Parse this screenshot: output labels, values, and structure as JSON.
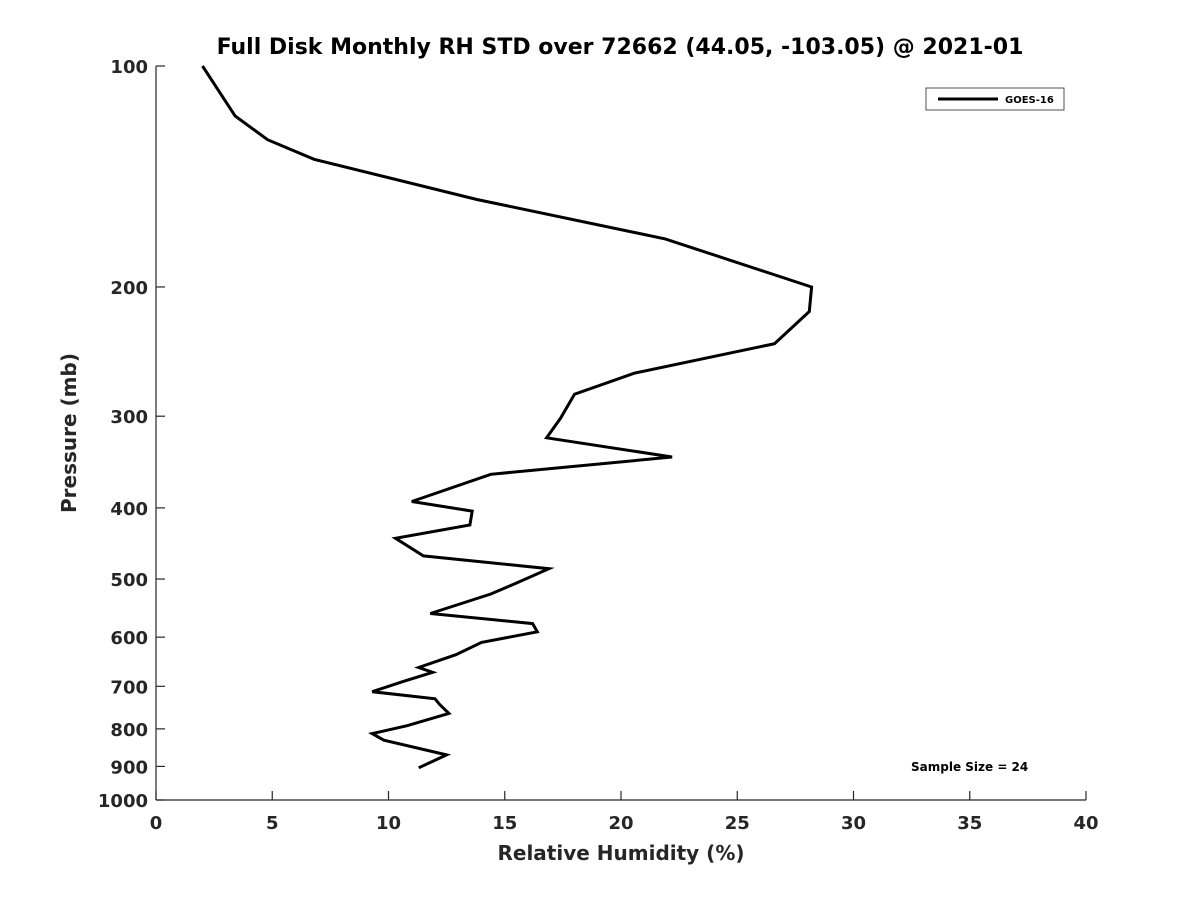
{
  "chart_data": {
    "type": "line",
    "title": "Full Disk Monthly RH STD over 72662 (44.05, -103.05) @ 2021-01",
    "xlabel": "Relative Humidity (%)",
    "ylabel": "Pressure (mb)",
    "xlim": [
      0,
      40
    ],
    "ylim": [
      100,
      1000
    ],
    "yscale": "log",
    "y_reversed": true,
    "grid": false,
    "legend_position": "top-right",
    "x_ticks": [
      0,
      5,
      10,
      15,
      20,
      25,
      30,
      35,
      40
    ],
    "x_tick_labels": [
      "0",
      "5",
      "10",
      "15",
      "20",
      "25",
      "30",
      "35",
      "40"
    ],
    "y_ticks": [
      100,
      200,
      300,
      400,
      500,
      600,
      700,
      800,
      900,
      1000
    ],
    "y_tick_labels": [
      "100",
      "200",
      "300",
      "400",
      "500",
      "600",
      "700",
      "800",
      "900",
      "1000"
    ],
    "series": [
      {
        "name": "GOES-16",
        "color": "#000000",
        "x": [
          2.0,
          3.4,
          4.8,
          6.8,
          13.8,
          21.9,
          28.2,
          28.1,
          26.6,
          20.6,
          18.0,
          17.4,
          16.8,
          22.2,
          14.4,
          11.0,
          13.6,
          13.5,
          10.3,
          11.5,
          16.9,
          15.4,
          14.4,
          11.8,
          16.2,
          16.4,
          14.0,
          12.9,
          11.3,
          11.9,
          10.6,
          9.3,
          12.0,
          12.2,
          12.6,
          10.8,
          9.3,
          9.8,
          12.5,
          11.3
        ],
        "y": [
          100,
          117,
          126,
          134,
          152,
          172,
          200,
          216,
          239,
          262,
          280,
          302,
          321,
          341,
          360,
          392,
          404,
          422,
          440,
          465,
          484,
          508,
          524,
          557,
          575,
          590,
          610,
          634,
          660,
          670,
          690,
          712,
          728,
          741,
          762,
          792,
          812,
          829,
          868,
          904
        ]
      }
    ],
    "annotations": [
      "Sample Size = 24"
    ]
  }
}
